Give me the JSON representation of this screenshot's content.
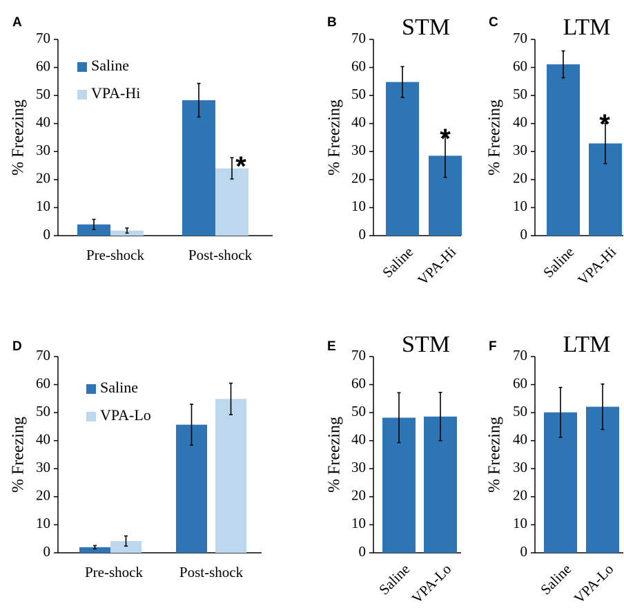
{
  "colors": {
    "dark": "#2e75b6",
    "light": "#bdd7ee",
    "axis": "#000000"
  },
  "chart_data": [
    {
      "panel": "A",
      "type": "bar",
      "title": "",
      "xlabel": "",
      "ylabel": "% Freezing",
      "ylim": [
        0,
        70
      ],
      "yticks": [
        "0",
        "10",
        "20",
        "30",
        "40",
        "50",
        "60",
        "70"
      ],
      "categories": [
        "Pre-shock",
        "Post-shock"
      ],
      "series": [
        {
          "name": "Saline",
          "values": [
            4,
            48.3
          ],
          "errors": [
            1.8,
            6
          ]
        },
        {
          "name": "VPA-Hi",
          "values": [
            1.8,
            24
          ],
          "errors": [
            0.9,
            3.8
          ]
        }
      ],
      "legend": "top-left",
      "grid": false,
      "annotations": [
        {
          "text": "*",
          "category": "Post-shock",
          "series": "VPA-Hi"
        }
      ]
    },
    {
      "panel": "B",
      "type": "bar",
      "title": "STM",
      "xlabel": "",
      "ylabel": "% Freezing",
      "ylim": [
        0,
        70
      ],
      "yticks": [
        "0",
        "10",
        "20",
        "30",
        "40",
        "50",
        "60",
        "70"
      ],
      "categories": [
        "Saline",
        "VPA-Hi"
      ],
      "values": [
        54.8,
        28.5
      ],
      "errors": [
        5.5,
        7.7
      ],
      "grid": false,
      "annotations": [
        {
          "text": "*",
          "category": "VPA-Hi"
        }
      ]
    },
    {
      "panel": "C",
      "type": "bar",
      "title": "LTM",
      "xlabel": "",
      "ylabel": "% Freezing",
      "ylim": [
        0,
        70
      ],
      "yticks": [
        "0",
        "10",
        "20",
        "30",
        "40",
        "50",
        "60",
        "70"
      ],
      "categories": [
        "Saline",
        "VPA-Hi"
      ],
      "values": [
        61.1,
        32.9
      ],
      "errors": [
        4.8,
        7.2
      ],
      "grid": false,
      "annotations": [
        {
          "text": "*",
          "category": "VPA-Hi"
        }
      ]
    },
    {
      "panel": "D",
      "type": "bar",
      "title": "",
      "xlabel": "",
      "ylabel": "% Freezing",
      "ylim": [
        0,
        70
      ],
      "yticks": [
        "0",
        "10",
        "20",
        "30",
        "40",
        "50",
        "60",
        "70"
      ],
      "categories": [
        "Pre-shock",
        "Post-shock"
      ],
      "series": [
        {
          "name": "Saline",
          "values": [
            2,
            45.7
          ],
          "errors": [
            0.6,
            7.3
          ]
        },
        {
          "name": "VPA-Lo",
          "values": [
            4.2,
            54.9
          ],
          "errors": [
            1.8,
            5.6
          ]
        }
      ],
      "legend": "top-left",
      "grid": false
    },
    {
      "panel": "E",
      "type": "bar",
      "title": "STM",
      "xlabel": "",
      "ylabel": "% Freezing",
      "ylim": [
        0,
        70
      ],
      "yticks": [
        "0",
        "10",
        "20",
        "30",
        "40",
        "50",
        "60",
        "70"
      ],
      "categories": [
        "Saline",
        "VPA-Lo"
      ],
      "values": [
        48.2,
        48.6
      ],
      "errors": [
        8.9,
        8.6
      ],
      "grid": false
    },
    {
      "panel": "F",
      "type": "bar",
      "title": "LTM",
      "xlabel": "",
      "ylabel": "% Freezing",
      "ylim": [
        0,
        70
      ],
      "yticks": [
        "0",
        "10",
        "20",
        "30",
        "40",
        "50",
        "60",
        "70"
      ],
      "categories": [
        "Saline",
        "VPA-Lo"
      ],
      "values": [
        50.1,
        52.1
      ],
      "errors": [
        8.9,
        8.1
      ],
      "grid": false
    }
  ]
}
